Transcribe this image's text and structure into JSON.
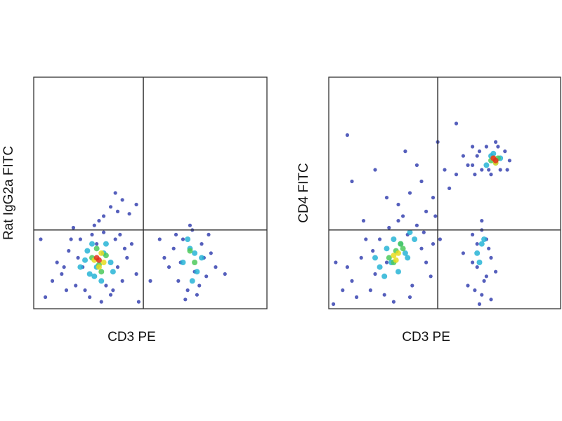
{
  "chart_data": [
    {
      "type": "scatter",
      "xlabel": "CD3 PE",
      "ylabel": "Rat IgG2a FITC",
      "xlim": [
        0,
        100
      ],
      "ylim": [
        0,
        100
      ],
      "gate_x": 47,
      "gate_y": 34,
      "series": [
        {
          "color": "#1c2aa6",
          "x": [
            12,
            15,
            18,
            20,
            22,
            25,
            30,
            35,
            38,
            40,
            42,
            10,
            14,
            17,
            33,
            36,
            24,
            19,
            27,
            31,
            8,
            44,
            16,
            39,
            29,
            21,
            26,
            34,
            13,
            37,
            58,
            60,
            62,
            64,
            66,
            68,
            70,
            72,
            74,
            76,
            78,
            56,
            63,
            71,
            75,
            67,
            61,
            69,
            73,
            65,
            30,
            33,
            36,
            38,
            41,
            35,
            28,
            44,
            5,
            50,
            54,
            45,
            82,
            3
          ],
          "y": [
            15,
            25,
            10,
            30,
            8,
            32,
            33,
            30,
            12,
            22,
            28,
            20,
            8,
            35,
            6,
            18,
            5,
            22,
            28,
            10,
            12,
            15,
            30,
            26,
            3,
            18,
            36,
            8,
            18,
            32,
            18,
            26,
            12,
            30,
            8,
            34,
            6,
            28,
            14,
            24,
            18,
            22,
            20,
            10,
            32,
            36,
            32,
            16,
            22,
            4,
            40,
            44,
            42,
            47,
            41,
            50,
            38,
            45,
            5,
            12,
            30,
            3,
            15,
            30
          ]
        },
        {
          "color": "#27b4d6",
          "x": [
            20,
            23,
            26,
            30,
            33,
            25,
            29,
            22,
            34,
            27,
            31,
            24,
            64,
            67,
            70,
            72,
            68,
            66,
            69
          ],
          "y": [
            18,
            25,
            14,
            24,
            20,
            28,
            12,
            21,
            16,
            18,
            28,
            15,
            20,
            26,
            16,
            22,
            12,
            30,
            24
          ]
        },
        {
          "color": "#4cc95a",
          "x": [
            25,
            28,
            31,
            27,
            29,
            69,
            67
          ],
          "y": [
            22,
            19,
            23,
            26,
            16,
            20,
            25
          ]
        },
        {
          "color": "#e6dc1e",
          "x": [
            26,
            29,
            28,
            30
          ],
          "y": [
            21,
            24,
            18,
            20
          ]
        },
        {
          "color": "#e0301c",
          "x": [
            28,
            27
          ],
          "y": [
            21,
            22
          ]
        }
      ]
    },
    {
      "type": "scatter",
      "xlabel": "CD3 PE",
      "ylabel": "CD4 FITC",
      "xlim": [
        0,
        100
      ],
      "ylim": [
        0,
        100
      ],
      "gate_x": 47,
      "gate_y": 34,
      "series": [
        {
          "color": "#1c2aa6",
          "x": [
            10,
            14,
            18,
            22,
            26,
            30,
            34,
            38,
            42,
            45,
            12,
            16,
            20,
            24,
            36,
            40,
            8,
            28,
            32,
            44,
            6,
            15,
            48,
            46,
            25,
            35,
            19,
            41,
            3,
            2,
            30,
            35,
            40,
            45,
            50,
            55,
            38,
            42,
            52,
            58,
            60,
            33,
            47,
            10,
            8,
            20,
            25,
            55,
            62,
            62,
            64,
            66,
            68,
            70,
            72,
            74,
            76,
            78,
            65,
            73,
            69,
            77,
            63,
            60,
            62,
            64,
            66,
            68,
            70,
            62,
            66,
            68,
            64,
            70,
            72,
            58,
            66,
            63,
            67,
            69,
            65
          ],
          "y": [
            12,
            22,
            8,
            30,
            35,
            38,
            32,
            36,
            20,
            28,
            5,
            30,
            15,
            6,
            10,
            26,
            18,
            3,
            40,
            14,
            8,
            38,
            30,
            40,
            20,
            5,
            25,
            33,
            20,
            2,
            45,
            50,
            55,
            48,
            60,
            58,
            62,
            42,
            52,
            66,
            62,
            68,
            72,
            55,
            75,
            60,
            48,
            80,
            70,
            62,
            66,
            60,
            70,
            58,
            72,
            60,
            68,
            64,
            68,
            70,
            60,
            60,
            58,
            10,
            20,
            28,
            34,
            14,
            22,
            32,
            6,
            30,
            18,
            4,
            16,
            24,
            38,
            8,
            12,
            26,
            2
          ]
        },
        {
          "color": "#27b4d6",
          "x": [
            22,
            25,
            28,
            31,
            34,
            37,
            24,
            30,
            33,
            27,
            20,
            35,
            68,
            70,
            72,
            74,
            71,
            64,
            66,
            65,
            67
          ],
          "y": [
            18,
            26,
            30,
            28,
            22,
            30,
            14,
            16,
            24,
            20,
            22,
            33,
            62,
            66,
            63,
            65,
            67,
            24,
            28,
            20,
            30
          ]
        },
        {
          "color": "#4cc95a",
          "x": [
            26,
            29,
            32,
            28,
            31,
            70,
            73
          ],
          "y": [
            22,
            25,
            26,
            20,
            28,
            64,
            65
          ]
        },
        {
          "color": "#e6dc1e",
          "x": [
            28,
            30,
            29,
            71,
            72
          ],
          "y": [
            23,
            24,
            21,
            65,
            63
          ]
        },
        {
          "color": "#e0301c",
          "x": [
            72,
            71
          ],
          "y": [
            64,
            65
          ]
        }
      ]
    }
  ]
}
